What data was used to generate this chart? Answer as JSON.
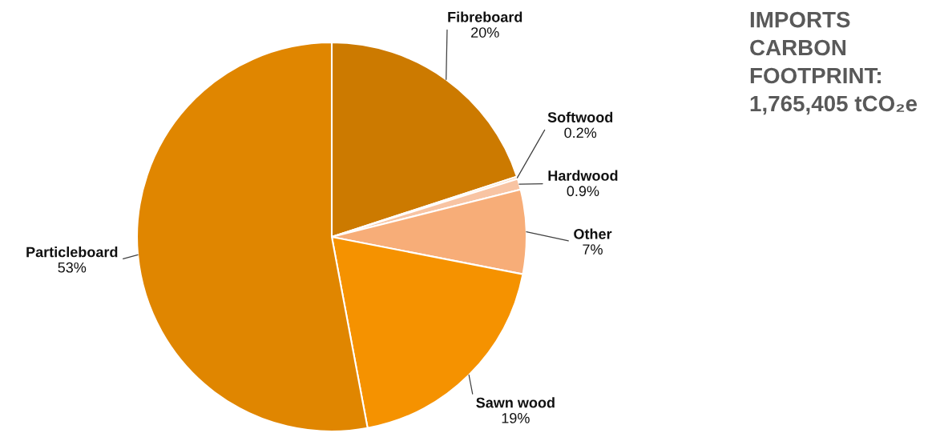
{
  "chart_data": {
    "type": "pie",
    "title": "IMPORTS\nCARBON\nFOOTPRINT:\n1,765,405 tCO₂e",
    "categories": [
      "Fibreboard",
      "Softwood",
      "Hardwood",
      "Other",
      "Sawn wood",
      "Particleboard"
    ],
    "values": [
      20,
      0.2,
      0.9,
      7,
      19,
      53
    ],
    "value_labels": [
      "20%",
      "0.2%",
      "0.9%",
      "7%",
      "19%",
      "53%"
    ],
    "colors": [
      "#cc7a00",
      "#fbd5b5",
      "#f8c4a3",
      "#f7ad78",
      "#f59200",
      "#e08600"
    ]
  }
}
